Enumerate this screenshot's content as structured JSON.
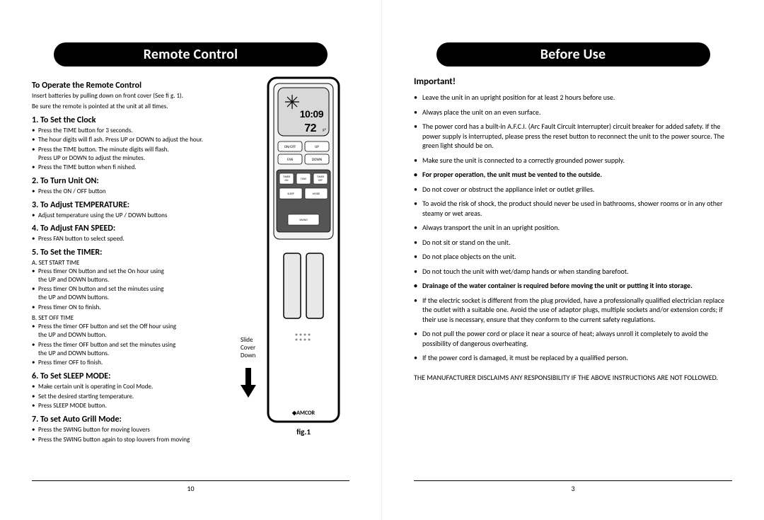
{
  "left": {
    "header": "Remote Control",
    "operate_title": "To Operate the Remote Control",
    "operate_lines": [
      "Insert batteries by pulling down on front cover (See fi g. 1).",
      "Be sure the remote is pointed at the unit at all times."
    ],
    "sections": [
      {
        "title": "1.  To Set the Clock",
        "items": [
          "Press the TIME button for 3 seconds.",
          "The hour digits will fl ash. Press UP or DOWN to adjust the hour.",
          "Press the TIME button. The minute digits will flash.\nPress UP or DOWN to adjust the minutes.",
          "Press the TIME button when fi nished."
        ]
      },
      {
        "title": "2.  To Turn Unit ON:",
        "items": [
          "Press the ON / OFF button"
        ]
      },
      {
        "title": "3.  To Adjust TEMPERATURE:",
        "items": [
          "Adjust temperature using the UP / DOWN buttons"
        ]
      },
      {
        "title": "4.  To Adjust FAN SPEED:",
        "items": [
          "Press FAN button to select speed."
        ]
      },
      {
        "title": "5.  To Set the TIMER:",
        "sublabel_a": "A. SET START TIME",
        "items_a": [
          "Press timer ON button and set the On hour using\nthe UP and DOWN buttons.",
          "Press timer ON button and set the minutes using\nthe UP and DOWN buttons.",
          "Press timer ON to finish."
        ],
        "sublabel_b": "B. SET OFF TIME",
        "items_b": [
          "Press the timer OFF button and set the Off hour using\nthe UP and DOWN button.",
          "Press the timer OFF button and set the minutes using\nthe UP and DOWN buttons.",
          "Press timer OFF to finish."
        ]
      },
      {
        "title": "6. To Set SLEEP MODE:",
        "items": [
          "Make certain unit is operating in Cool Mode.",
          "Set the desired starting temperature.",
          "Press SLEEP MODE button."
        ]
      },
      {
        "title": "7. To set Auto Grill Mode:",
        "items": [
          "Press the SWING button for moving louvers",
          "Press the SWING button again to stop louvers from moving"
        ]
      }
    ],
    "remote": {
      "brand": "AMCOR",
      "lcd_time": "10:09",
      "lcd_temp": "72",
      "lcd_unit": "F°",
      "btn_onoff": "ON/OFF",
      "btn_up": "UP",
      "btn_fan": "FAN",
      "btn_down": "DOWN",
      "btn_timer_on": "TIMER\nON",
      "btn_time": "TIME",
      "btn_timer_off": "TIMER\nOFF",
      "btn_sleep": "SLEEP",
      "btn_mode": "MODE",
      "btn_swing": "SWING",
      "body_color": "#ffffff",
      "outline": "#000000",
      "panel_fill": "#f2f2f2",
      "lcd_fill": "#d8d8d8",
      "btn_fill": "#ffffff",
      "battery_fill": "#e8e8e8",
      "fig_label": "fig.1",
      "slide_text": "Slide\nCover\nDown"
    },
    "page_num": "10"
  },
  "right": {
    "header": "Before Use",
    "important": "Important!",
    "items": [
      {
        "text": "Leave the unit in an upright position for at least 2 hours before use."
      },
      {
        "text": "Always place the unit on an even surface."
      },
      {
        "text": "The power cord has a built-in A.F.C.I. (Arc Fault Circuit Interrupter) circuit breaker for added safety.  If the power supply is interrupted, please press the reset button to reconnect the unit to the power source.  The green light should be on."
      },
      {
        "text": "Make sure the unit is connected to a correctly grounded power supply."
      },
      {
        "text": "For proper operation, the unit must be vented to the outside.",
        "bold": true
      },
      {
        "text": "Do not cover or obstruct the appliance inlet or outlet grilles."
      },
      {
        "text": "To avoid the risk of shock, the product should never be used in bathrooms, shower rooms or in any other steamy or wet areas."
      },
      {
        "text": "Always transport the unit in an upright position."
      },
      {
        "text": "Do not sit or stand on the unit."
      },
      {
        "text": "Do not place objects on the unit."
      },
      {
        "text": "Do not touch the unit with wet/damp hands or when standing barefoot."
      },
      {
        "text": "Drainage of the water container is required before moving the unit or putting it into storage.",
        "bold": true
      },
      {
        "text": "If the electric socket is different from the plug provided, have a professionally qualified electrician replace the outlet with a suitable one. Avoid the use of adaptor plugs, multiple sockets and/or extension cords; if their use is necessary, ensure that they conform to the current safety regulations."
      },
      {
        "text": "Do not pull the power cord or place it near a source of heat; always unroll it completely to avoid the possibility of dangerous overheating."
      },
      {
        "text": "If the power cord is damaged, it must be replaced by a qualified person."
      }
    ],
    "disclaimer": "THE MANUFACTURER DISCLAIMS ANY RESPONSIBILITY IF THE ABOVE INSTRUCTIONS ARE NOT FOLLOWED.",
    "page_num": "3"
  }
}
